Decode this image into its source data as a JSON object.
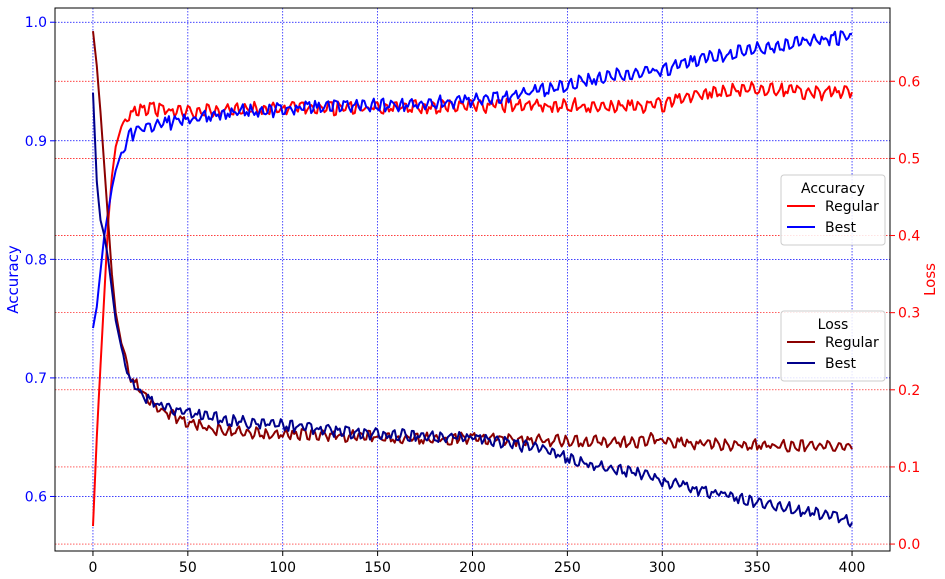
{
  "chart_data": {
    "type": "line",
    "grid": true,
    "x_axis": {
      "lim": [
        -20,
        420
      ],
      "ticks": [
        0,
        50,
        100,
        150,
        200,
        250,
        300,
        350,
        400
      ],
      "tick_labels": [
        "0",
        "50",
        "100",
        "150",
        "200",
        "250",
        "300",
        "350",
        "400"
      ],
      "label": ""
    },
    "y_left": {
      "label": "Accuracy",
      "color": "#0000ff",
      "lim": [
        0.554,
        1.012
      ],
      "ticks": [
        0.6,
        0.7,
        0.8,
        0.9,
        1.0
      ],
      "tick_labels": [
        "0.6",
        "0.7",
        "0.8",
        "0.9",
        "1.0"
      ],
      "grid_color": "#0000ff"
    },
    "y_right": {
      "label": "Loss",
      "color": "#ff0000",
      "lim": [
        -0.009,
        0.695
      ],
      "ticks": [
        0.0,
        0.1,
        0.2,
        0.3,
        0.4,
        0.5,
        0.6
      ],
      "tick_labels": [
        "0.0",
        "0.1",
        "0.2",
        "0.3",
        "0.4",
        "0.5",
        "0.6"
      ],
      "grid_color": "#ff0000"
    },
    "legends": [
      {
        "title": "Accuracy",
        "placement": "center-right",
        "entries": [
          {
            "name": "Regular",
            "color": "#ff0000"
          },
          {
            "name": "Best",
            "color": "#0000ff"
          }
        ]
      },
      {
        "title": "Loss",
        "placement": "lower-right",
        "entries": [
          {
            "name": "Regular",
            "color": "#8b0000"
          },
          {
            "name": "Best",
            "color": "#00008b"
          }
        ]
      }
    ],
    "series": [
      {
        "name": "Regular",
        "group": "Accuracy",
        "axis": "left",
        "color": "#ff0000",
        "x": [
          0,
          2,
          4,
          6,
          8,
          10,
          12,
          15,
          18,
          20,
          25,
          30,
          40,
          50,
          60,
          80,
          100,
          120,
          150,
          180,
          200,
          220,
          250,
          270,
          290,
          295,
          300,
          310,
          330,
          350,
          370,
          380,
          390,
          400
        ],
        "y": [
          0.575,
          0.65,
          0.71,
          0.77,
          0.83,
          0.87,
          0.895,
          0.912,
          0.92,
          0.924,
          0.927,
          0.927,
          0.925,
          0.924,
          0.925,
          0.927,
          0.927,
          0.927,
          0.928,
          0.929,
          0.929,
          0.93,
          0.93,
          0.93,
          0.929,
          0.933,
          0.929,
          0.935,
          0.943,
          0.944,
          0.942,
          0.94,
          0.94,
          0.941
        ]
      },
      {
        "name": "Best",
        "group": "Accuracy",
        "axis": "left",
        "color": "#0000ff",
        "x": [
          0,
          2,
          4,
          6,
          8,
          10,
          12,
          15,
          18,
          20,
          25,
          30,
          40,
          50,
          60,
          80,
          100,
          120,
          150,
          180,
          200,
          220,
          240,
          250,
          270,
          290,
          300,
          320,
          340,
          350,
          370,
          380,
          390,
          395,
          400
        ],
        "y": [
          0.742,
          0.76,
          0.79,
          0.82,
          0.84,
          0.86,
          0.875,
          0.89,
          0.9,
          0.905,
          0.91,
          0.912,
          0.915,
          0.918,
          0.922,
          0.925,
          0.926,
          0.928,
          0.93,
          0.932,
          0.934,
          0.938,
          0.943,
          0.948,
          0.955,
          0.957,
          0.96,
          0.968,
          0.975,
          0.978,
          0.982,
          0.985,
          0.986,
          0.987,
          0.99
        ]
      },
      {
        "name": "Regular",
        "group": "Loss",
        "axis": "right",
        "color": "#8b0000",
        "x": [
          0,
          2,
          4,
          6,
          8,
          10,
          12,
          15,
          18,
          20,
          25,
          30,
          40,
          50,
          60,
          80,
          100,
          120,
          150,
          180,
          200,
          220,
          250,
          270,
          290,
          295,
          300,
          310,
          330,
          350,
          370,
          390,
          400
        ],
        "y": [
          0.665,
          0.62,
          0.56,
          0.49,
          0.42,
          0.35,
          0.3,
          0.26,
          0.23,
          0.215,
          0.2,
          0.185,
          0.168,
          0.158,
          0.15,
          0.145,
          0.143,
          0.141,
          0.139,
          0.137,
          0.137,
          0.135,
          0.134,
          0.133,
          0.132,
          0.139,
          0.132,
          0.131,
          0.129,
          0.128,
          0.127,
          0.126,
          0.123
        ]
      },
      {
        "name": "Best",
        "group": "Loss",
        "axis": "right",
        "color": "#00008b",
        "x": [
          0,
          2,
          4,
          6,
          8,
          10,
          12,
          15,
          18,
          20,
          25,
          30,
          40,
          50,
          60,
          80,
          100,
          120,
          150,
          180,
          200,
          220,
          240,
          250,
          270,
          290,
          300,
          320,
          340,
          350,
          370,
          380,
          390,
          395,
          400
        ],
        "y": [
          0.585,
          0.47,
          0.42,
          0.4,
          0.37,
          0.33,
          0.29,
          0.255,
          0.225,
          0.21,
          0.195,
          0.185,
          0.175,
          0.17,
          0.165,
          0.158,
          0.155,
          0.148,
          0.142,
          0.14,
          0.138,
          0.13,
          0.122,
          0.112,
          0.1,
          0.09,
          0.082,
          0.07,
          0.06,
          0.055,
          0.045,
          0.04,
          0.035,
          0.032,
          0.028
        ]
      }
    ]
  }
}
